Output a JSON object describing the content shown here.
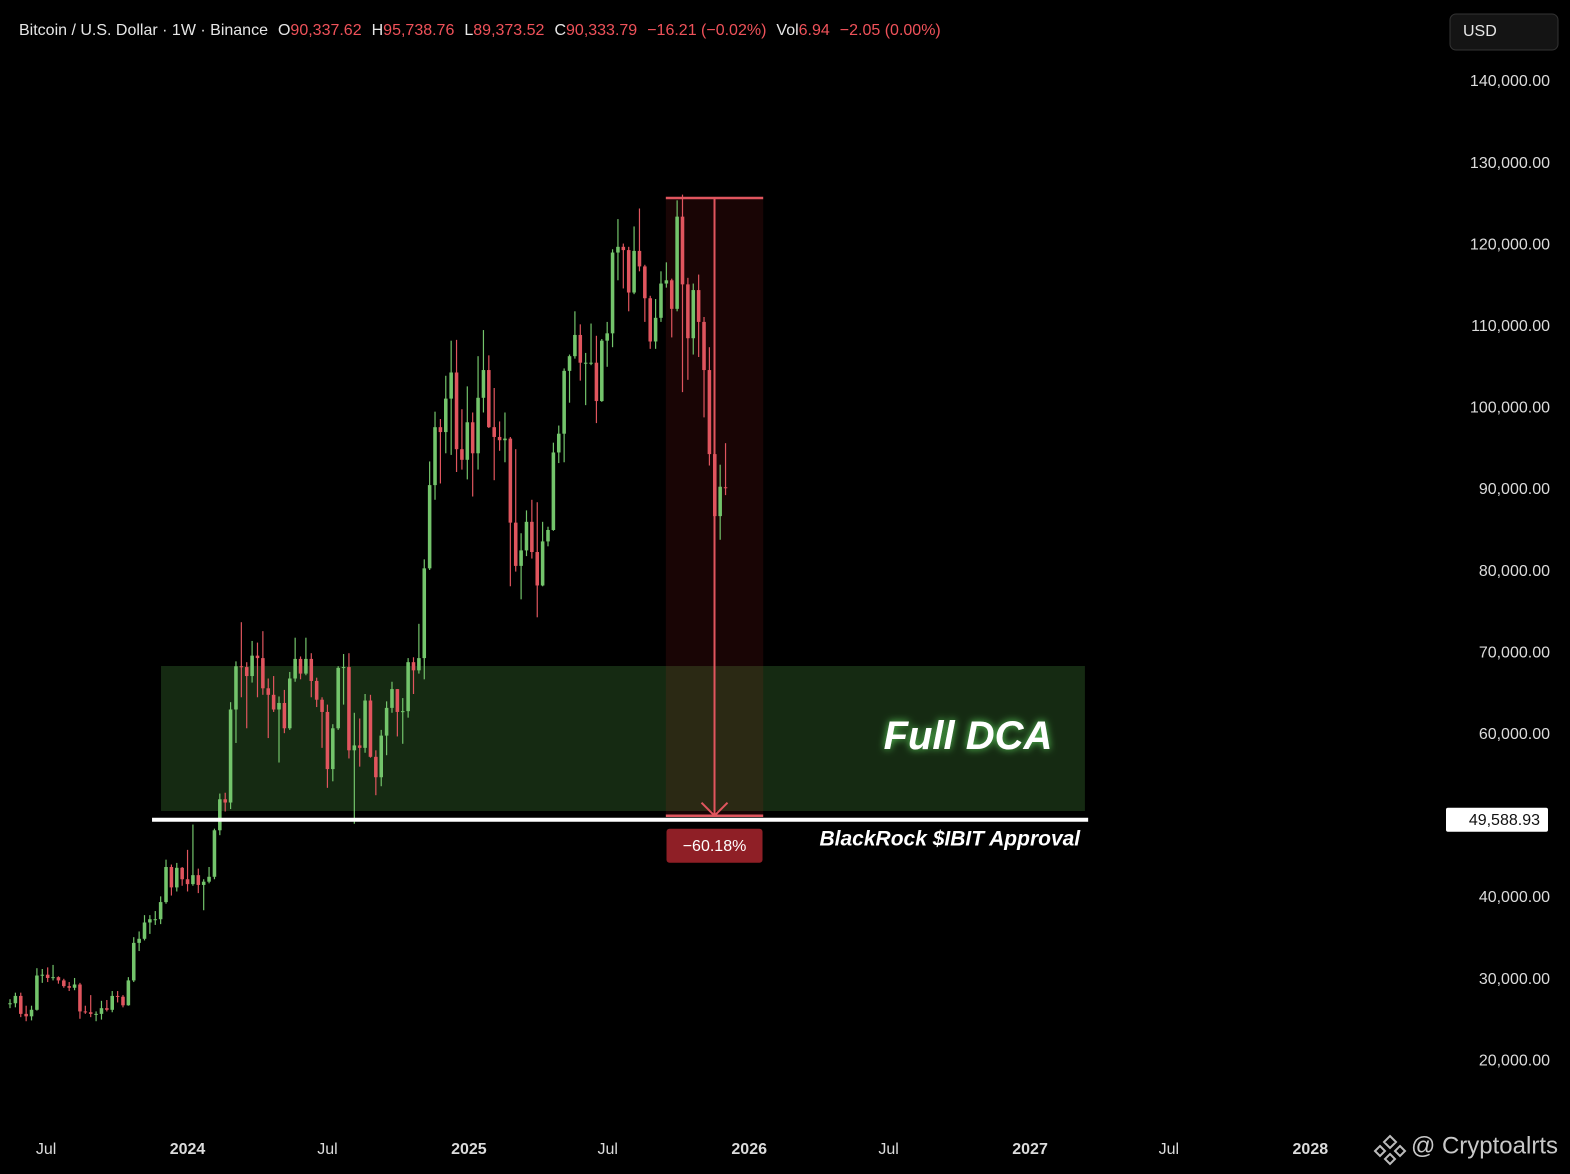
{
  "chart_data": {
    "type": "candlestick",
    "header": {
      "symbol": "Bitcoin / U.S. Dollar · 1W · Binance",
      "open_label": "O",
      "open": "90,337.62",
      "high_label": "H",
      "high": "95,738.76",
      "low_label": "L",
      "low": "89,373.52",
      "close_label": "C",
      "close": "90,333.79",
      "change": "−16.21 (−0.02%)",
      "vol_label": "Vol",
      "vol": "6.94",
      "vol_change": "−2.05 (0.00%)"
    },
    "currency": "USD",
    "up_color": "#73c46b",
    "down_color": "#e0555e",
    "candles": [
      [
        27000,
        27600,
        26500,
        27100
      ],
      [
        27100,
        28400,
        26600,
        28000
      ],
      [
        28000,
        28400,
        25400,
        25800
      ],
      [
        25800,
        26800,
        24900,
        25500
      ],
      [
        25500,
        26800,
        25000,
        26300
      ],
      [
        26300,
        31400,
        26200,
        30500
      ],
      [
        30500,
        31300,
        29600,
        30600
      ],
      [
        30600,
        31500,
        29700,
        30200
      ],
      [
        30200,
        31800,
        29900,
        30300
      ],
      [
        30300,
        30400,
        29500,
        29900
      ],
      [
        29900,
        30100,
        29000,
        29200
      ],
      [
        29200,
        29700,
        28600,
        29000
      ],
      [
        29000,
        30200,
        28700,
        29400
      ],
      [
        29400,
        29600,
        25200,
        26100
      ],
      [
        26100,
        26800,
        25800,
        26000
      ],
      [
        26000,
        28100,
        25400,
        25800
      ],
      [
        25800,
        26100,
        24900,
        25800
      ],
      [
        25800,
        27400,
        25100,
        26500
      ],
      [
        26500,
        27500,
        26100,
        26300
      ],
      [
        26300,
        28600,
        26000,
        28000
      ],
      [
        28000,
        28600,
        27200,
        27900
      ],
      [
        27900,
        28100,
        26600,
        26850
      ],
      [
        26850,
        30300,
        26800,
        29900
      ],
      [
        29900,
        35200,
        29700,
        34500
      ],
      [
        34500,
        35900,
        33500,
        35000
      ],
      [
        35000,
        37900,
        34800,
        37000
      ],
      [
        37000,
        37900,
        35600,
        37400
      ],
      [
        37400,
        38400,
        36700,
        37400
      ],
      [
        37400,
        40200,
        36800,
        39500
      ],
      [
        39500,
        44700,
        39300,
        43800
      ],
      [
        43800,
        44100,
        40300,
        41300
      ],
      [
        41300,
        44300,
        40800,
        43700
      ],
      [
        43700,
        43800,
        41500,
        42300
      ],
      [
        42300,
        45900,
        40800,
        41700
      ],
      [
        41700,
        49000,
        41500,
        42800
      ],
      [
        42800,
        43600,
        40600,
        41600
      ],
      [
        41600,
        42300,
        38500,
        42000
      ],
      [
        42000,
        43800,
        41800,
        42600
      ],
      [
        42600,
        48500,
        42300,
        48300
      ],
      [
        48300,
        52800,
        47700,
        52100
      ],
      [
        52100,
        52900,
        50600,
        51700
      ],
      [
        51700,
        64000,
        50900,
        63100
      ],
      [
        63100,
        69000,
        59000,
        68400
      ],
      [
        68400,
        73800,
        64600,
        68300
      ],
      [
        68300,
        68900,
        60800,
        67200
      ],
      [
        67200,
        71500,
        66400,
        69700
      ],
      [
        69700,
        71300,
        64600,
        69400
      ],
      [
        69400,
        72700,
        64900,
        65700
      ],
      [
        65700,
        66900,
        59600,
        64900
      ],
      [
        64900,
        67200,
        62800,
        63100
      ],
      [
        63100,
        64700,
        56600,
        63900
      ],
      [
        63900,
        65500,
        60200,
        60800
      ],
      [
        60800,
        67700,
        60600,
        66900
      ],
      [
        66900,
        71900,
        66500,
        69300
      ],
      [
        69300,
        69600,
        66800,
        67500
      ],
      [
        67500,
        71900,
        67300,
        69300
      ],
      [
        69300,
        70000,
        64600,
        66600
      ],
      [
        66600,
        67000,
        63400,
        64300
      ],
      [
        64300,
        64600,
        58400,
        62800
      ],
      [
        62800,
        63700,
        53500,
        55800
      ],
      [
        55800,
        61300,
        54300,
        60800
      ],
      [
        60800,
        68400,
        60600,
        68200
      ],
      [
        68200,
        69900,
        63700,
        68300
      ],
      [
        68300,
        70000,
        57100,
        58100
      ],
      [
        58100,
        62700,
        49100,
        58700
      ],
      [
        58700,
        62000,
        56100,
        58400
      ],
      [
        58400,
        65000,
        57800,
        64200
      ],
      [
        64200,
        64900,
        57200,
        57300
      ],
      [
        57300,
        58100,
        52600,
        54800
      ],
      [
        54800,
        60600,
        53700,
        59900
      ],
      [
        59900,
        64100,
        57500,
        63300
      ],
      [
        63300,
        66500,
        62700,
        65600
      ],
      [
        65600,
        65600,
        59800,
        62800
      ],
      [
        62800,
        64500,
        58900,
        62900
      ],
      [
        62900,
        69400,
        62100,
        68900
      ],
      [
        68900,
        69500,
        65000,
        67900
      ],
      [
        67900,
        73600,
        67500,
        69400
      ],
      [
        69400,
        81500,
        66800,
        80400
      ],
      [
        80400,
        93500,
        80200,
        90600
      ],
      [
        90600,
        99600,
        88800,
        97700
      ],
      [
        97700,
        98700,
        90800,
        97100
      ],
      [
        97100,
        104000,
        94500,
        101200
      ],
      [
        101200,
        108300,
        94300,
        104400
      ],
      [
        104400,
        108400,
        92200,
        95000
      ],
      [
        95000,
        99900,
        92500,
        93700
      ],
      [
        93700,
        102700,
        91300,
        98300
      ],
      [
        98300,
        99500,
        89200,
        94500
      ],
      [
        94500,
        106400,
        92500,
        101300
      ],
      [
        101300,
        109600,
        99500,
        104700
      ],
      [
        104700,
        106500,
        97600,
        97700
      ],
      [
        97700,
        102500,
        91200,
        96500
      ],
      [
        96500,
        98400,
        94800,
        96100
      ],
      [
        96100,
        99500,
        93400,
        96300
      ],
      [
        96300,
        96500,
        78200,
        86000
      ],
      [
        86000,
        95000,
        80000,
        80700
      ],
      [
        80700,
        84700,
        76600,
        82600
      ],
      [
        82600,
        87500,
        81900,
        86100
      ],
      [
        86100,
        88800,
        81600,
        82400
      ],
      [
        82400,
        88500,
        74400,
        78300
      ],
      [
        78300,
        86100,
        78200,
        83700
      ],
      [
        83700,
        85500,
        83100,
        85100
      ],
      [
        85100,
        95800,
        85000,
        94600
      ],
      [
        94600,
        97900,
        93300,
        96900
      ],
      [
        96900,
        104900,
        93400,
        104600
      ],
      [
        104600,
        106600,
        100700,
        106400
      ],
      [
        106400,
        111900,
        106100,
        109000
      ],
      [
        109000,
        110300,
        103400,
        105600
      ],
      [
        105600,
        106800,
        100400,
        105600
      ],
      [
        105600,
        110400,
        105300,
        105600
      ],
      [
        105600,
        108900,
        98200,
        100900
      ],
      [
        100900,
        108500,
        100800,
        108300
      ],
      [
        108300,
        110600,
        105100,
        109200
      ],
      [
        109200,
        119500,
        107500,
        119100
      ],
      [
        119100,
        123200,
        115700,
        119800
      ],
      [
        119800,
        120200,
        114700,
        119400
      ],
      [
        119400,
        119800,
        111900,
        114200
      ],
      [
        114200,
        122300,
        114000,
        119300
      ],
      [
        119300,
        124500,
        116800,
        117400
      ],
      [
        117400,
        117600,
        110600,
        113500
      ],
      [
        113500,
        113800,
        107300,
        108200
      ],
      [
        108200,
        113400,
        107300,
        111100
      ],
      [
        111100,
        116800,
        110600,
        115300
      ],
      [
        115300,
        117900,
        114800,
        115700
      ],
      [
        115700,
        115900,
        108700,
        112200
      ],
      [
        112200,
        125500,
        111900,
        123500
      ],
      [
        123500,
        126200,
        102000,
        115200
      ],
      [
        115200,
        116000,
        103500,
        108600
      ],
      [
        108600,
        115300,
        106600,
        114500
      ],
      [
        114500,
        116400,
        106300,
        110600
      ],
      [
        110600,
        111200,
        98900,
        104700
      ],
      [
        104700,
        107500,
        93000,
        94400
      ],
      [
        94400,
        96600,
        80600,
        86800
      ],
      [
        86800,
        93100,
        83900,
        90400
      ],
      [
        90337.62,
        95738.76,
        89373.52,
        90333.79
      ]
    ],
    "xlim": [
      -1.86,
      265.8
    ],
    "xticks": [
      {
        "value": 6.7,
        "label": "Jul"
      },
      {
        "value": 33,
        "label": "2024"
      },
      {
        "value": 59,
        "label": "Jul"
      },
      {
        "value": 85.3,
        "label": "2025"
      },
      {
        "value": 111.1,
        "label": "Jul"
      },
      {
        "value": 137.4,
        "label": "2026"
      },
      {
        "value": 163.3,
        "label": "Jul"
      },
      {
        "value": 189.6,
        "label": "2027"
      },
      {
        "value": 215.4,
        "label": "Jul"
      },
      {
        "value": 241.7,
        "label": "2028"
      }
    ],
    "ylim": [
      11569,
      150049
    ],
    "yticks": [
      {
        "value": 20000,
        "label": "20,000.00"
      },
      {
        "value": 30000,
        "label": "30,000.00"
      },
      {
        "value": 40000,
        "label": "40,000.00"
      },
      {
        "value": 60000,
        "label": "60,000.00"
      },
      {
        "value": 70000,
        "label": "70,000.00"
      },
      {
        "value": 80000,
        "label": "80,000.00"
      },
      {
        "value": 90000,
        "label": "90,000.00"
      },
      {
        "value": 100000,
        "label": "100,000.00"
      },
      {
        "value": 110000,
        "label": "110,000.00"
      },
      {
        "value": 120000,
        "label": "120,000.00"
      },
      {
        "value": 130000,
        "label": "130,000.00"
      },
      {
        "value": 140000,
        "label": "140,000.00"
      }
    ],
    "dca_zone": {
      "label": "Full DCA",
      "low": 50660,
      "high": 68430,
      "x_from": 28.07,
      "x_to": 199.8
    },
    "price_line": {
      "value": 49588.93,
      "label": "49,588.93",
      "annotation": "BlackRock $IBIT Approval",
      "x_from": 26.4,
      "x_to": 200.4
    },
    "measure": {
      "top": 125780,
      "bottom": 50085,
      "x_from": 121.9,
      "x_to": 140,
      "label": "−60.18%"
    },
    "watermark": "@ Cryptoalrts"
  }
}
